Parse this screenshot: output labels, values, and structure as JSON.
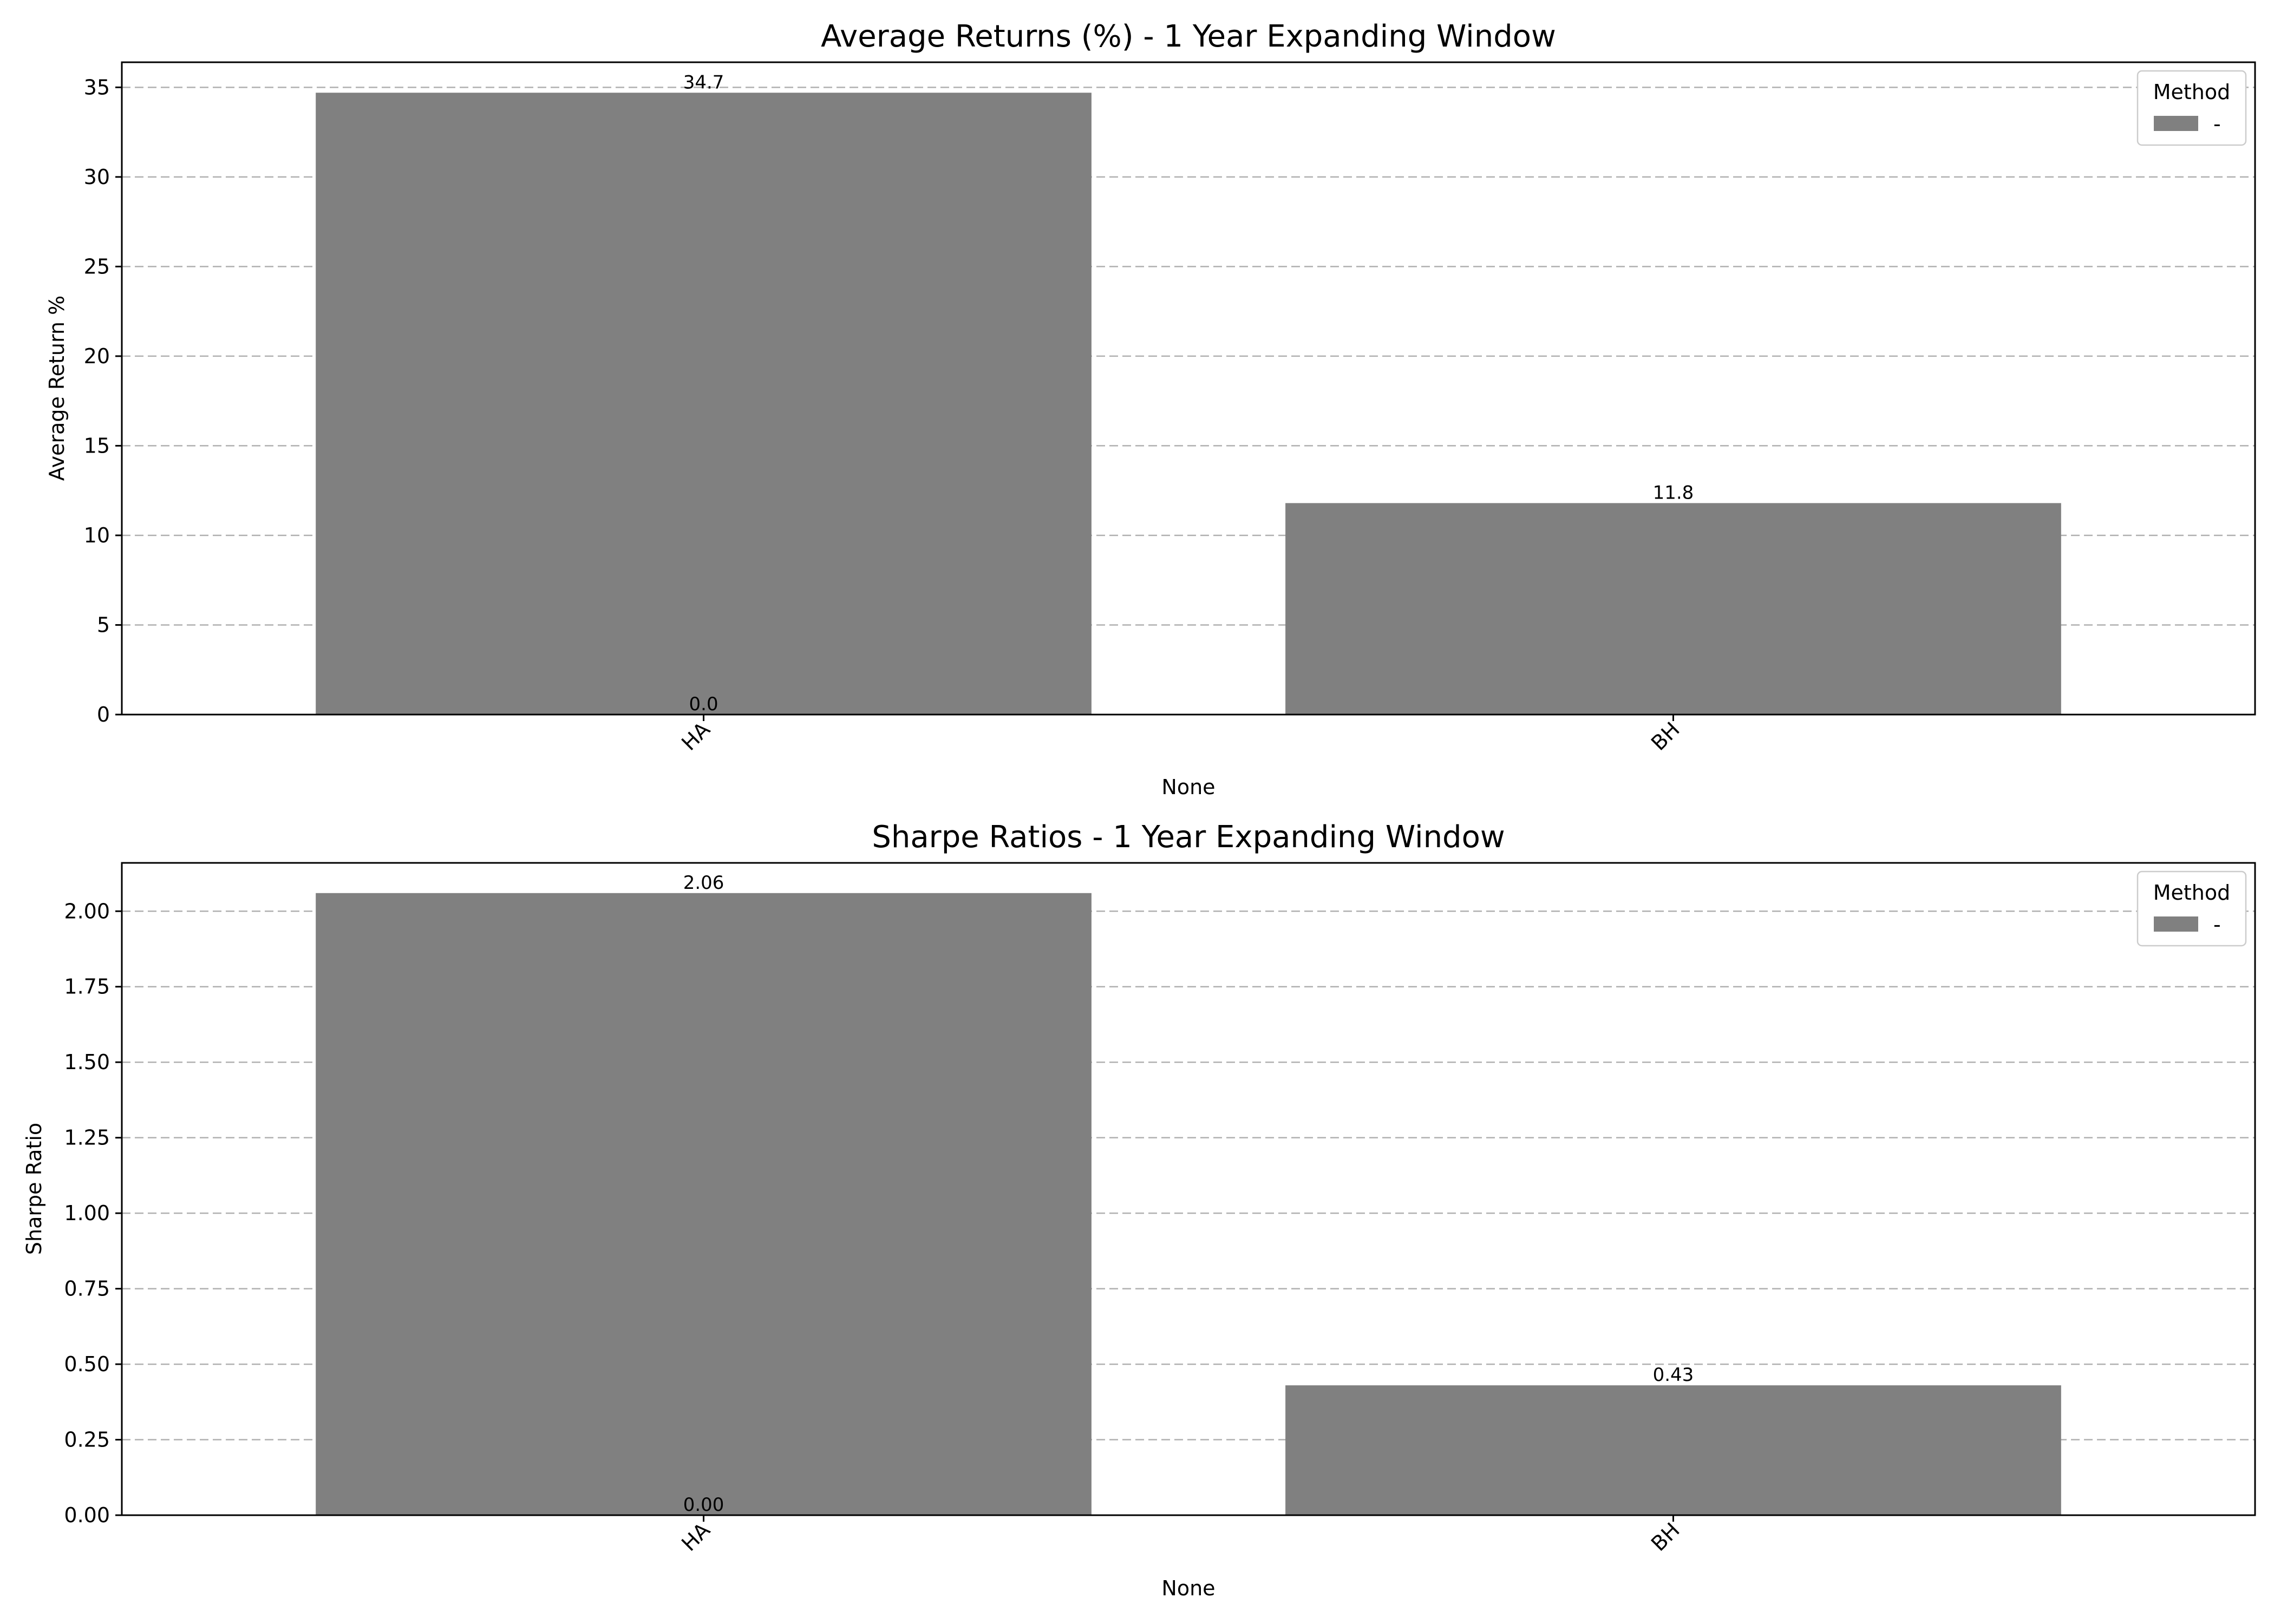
{
  "chart_data": [
    {
      "type": "bar",
      "title": "Average Returns (%) - 1 Year Expanding Window",
      "xlabel": "None",
      "ylabel": "Average Return %",
      "categories": [
        "HA",
        "BH"
      ],
      "values": [
        34.7,
        11.8
      ],
      "value_labels": [
        "34.7",
        "11.8"
      ],
      "zero_labels": [
        "0.0"
      ],
      "ylim": [
        0,
        36.4
      ],
      "yticks": [
        0,
        5,
        10,
        15,
        20,
        25,
        30,
        35
      ],
      "ytick_labels": [
        "0",
        "5",
        "10",
        "15",
        "20",
        "25",
        "30",
        "35"
      ],
      "grid": true,
      "legend": {
        "title": "Method",
        "entries": [
          "-"
        ],
        "placement": "top-right"
      },
      "bar_color": "#808080"
    },
    {
      "type": "bar",
      "title": "Sharpe Ratios - 1 Year Expanding Window",
      "xlabel": "None",
      "ylabel": "Sharpe Ratio",
      "categories": [
        "HA",
        "BH"
      ],
      "values": [
        2.06,
        0.43
      ],
      "value_labels": [
        "2.06",
        "0.43"
      ],
      "zero_labels": [
        "0.00"
      ],
      "ylim": [
        0,
        2.16
      ],
      "yticks": [
        0,
        0.25,
        0.5,
        0.75,
        1.0,
        1.25,
        1.5,
        1.75,
        2.0
      ],
      "ytick_labels": [
        "0.00",
        "0.25",
        "0.50",
        "0.75",
        "1.00",
        "1.25",
        "1.50",
        "1.75",
        "2.00"
      ],
      "grid": true,
      "legend": {
        "title": "Method",
        "entries": [
          "-"
        ],
        "placement": "top-right"
      },
      "bar_color": "#808080"
    }
  ]
}
